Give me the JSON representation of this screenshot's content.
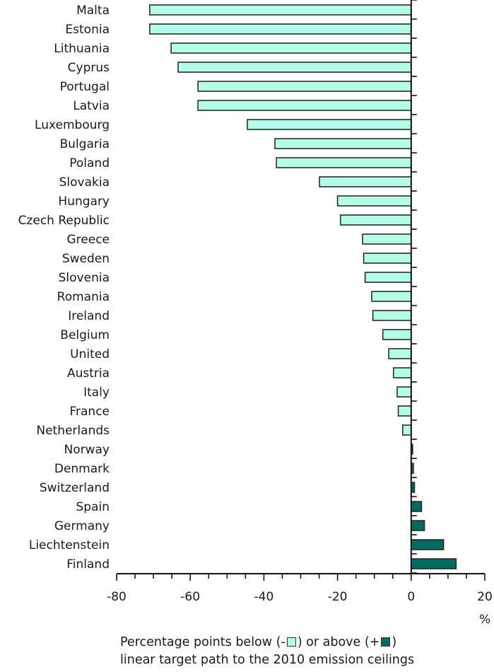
{
  "chart_data": {
    "type": "bar",
    "orientation": "horizontal",
    "categories": [
      "Malta",
      "Estonia",
      "Lithuania",
      "Cyprus",
      "Portugal",
      "Latvia",
      "Luxembourg",
      "Bulgaria",
      "Poland",
      "Slovakia",
      "Hungary",
      "Czech Republic",
      "Greece",
      "Sweden",
      "Slovenia",
      "Romania",
      "Ireland",
      "Belgium",
      "United",
      "Austria",
      "Italy",
      "France",
      "Netherlands",
      "Norway",
      "Denmark",
      "Switzerland",
      "Spain",
      "Germany",
      "Liechtenstein",
      "Finland"
    ],
    "values": [
      -71.0,
      -71.0,
      -65.2,
      -63.3,
      -57.9,
      -57.9,
      -44.5,
      -37.0,
      -36.6,
      -24.9,
      -20.0,
      -19.2,
      -13.2,
      -12.9,
      -12.5,
      -10.7,
      -10.4,
      -7.7,
      -6.1,
      -4.8,
      -3.8,
      -3.5,
      -2.3,
      0.4,
      0.6,
      0.9,
      2.8,
      3.6,
      8.8,
      12.2
    ],
    "xlim": [
      -80,
      20
    ],
    "xticks": [
      -80,
      -60,
      -40,
      -20,
      0,
      20
    ],
    "minor_tick_step": 5,
    "xlabel": "%",
    "title": "",
    "grid": false,
    "colors": {
      "negative": "#b3ffea",
      "positive": "#006b5e",
      "border": "#2b2b2b"
    },
    "legend": {
      "line1_prefix": "Percentage points below (-",
      "line1_mid": ") or above (+",
      "line1_suffix": ")",
      "line2": "linear target path to the 2010 emission ceilings",
      "placement": "bottom"
    }
  }
}
